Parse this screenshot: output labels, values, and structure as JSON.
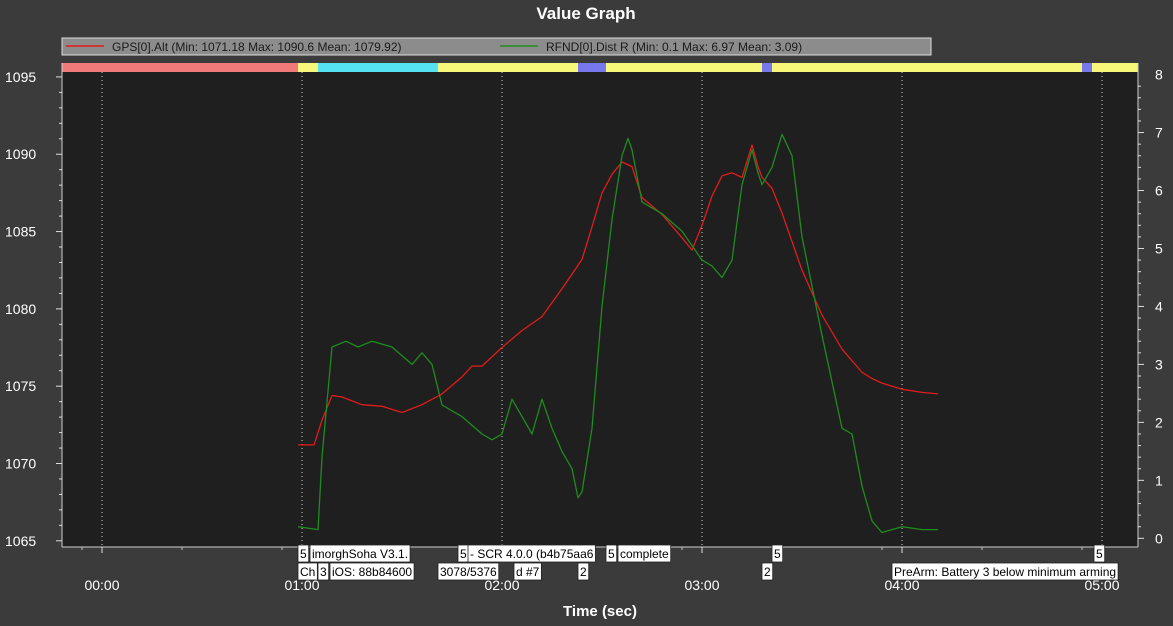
{
  "window": {
    "title": "Value Graph"
  },
  "chart_data": {
    "type": "line",
    "title": "Value Graph",
    "xlabel": "Time (sec)",
    "ylabel": "",
    "x_unit": "minutes",
    "xlim": [
      -0.2,
      5.18
    ],
    "ylim_left": [
      1064.6,
      1095.9
    ],
    "ylim_right": [
      -0.15,
      8.2
    ],
    "x_tick_labels": [
      "00:00",
      "01:00",
      "02:00",
      "03:00",
      "04:00",
      "05:00"
    ],
    "x_tick_values": [
      0,
      1,
      2,
      3,
      4,
      5
    ],
    "y_left_ticks": [
      1065,
      1070,
      1075,
      1080,
      1085,
      1090,
      1095
    ],
    "y_right_ticks": [
      0,
      1,
      2,
      3,
      4,
      5,
      6,
      7,
      8
    ],
    "grid": "vertical dotted",
    "legend": {
      "placement": "top",
      "entries": [
        "GPS[0].Alt  (Min: 1071.18 Max: 1090.6 Mean: 1079.92)",
        "RFND[0].Dist  R (Min: 0.1 Max: 6.97 Mean: 3.09)"
      ]
    },
    "series": [
      {
        "name": "GPS[0].Alt",
        "axis": "left",
        "color": "#e11c1c",
        "x": [
          0.98,
          1.06,
          1.1,
          1.15,
          1.2,
          1.3,
          1.4,
          1.5,
          1.6,
          1.7,
          1.8,
          1.85,
          1.9,
          2.0,
          2.1,
          2.2,
          2.3,
          2.4,
          2.45,
          2.5,
          2.55,
          2.6,
          2.65,
          2.7,
          2.8,
          2.9,
          2.95,
          3.0,
          3.05,
          3.1,
          3.15,
          3.2,
          3.25,
          3.28,
          3.3,
          3.35,
          3.4,
          3.5,
          3.6,
          3.7,
          3.8,
          3.85,
          3.9,
          4.0,
          4.1,
          4.18
        ],
        "y": [
          1071.2,
          1071.2,
          1072.8,
          1074.4,
          1074.3,
          1073.8,
          1073.7,
          1073.3,
          1073.8,
          1074.5,
          1075.6,
          1076.3,
          1076.3,
          1077.5,
          1078.6,
          1079.5,
          1081.3,
          1083.2,
          1085.3,
          1087.5,
          1088.7,
          1089.5,
          1089.2,
          1087.2,
          1086.1,
          1084.6,
          1083.8,
          1085.4,
          1087.3,
          1088.6,
          1088.8,
          1088.5,
          1090.6,
          1089.2,
          1088.5,
          1087.8,
          1086.2,
          1082.5,
          1079.6,
          1077.4,
          1075.9,
          1075.5,
          1075.2,
          1074.8,
          1074.6,
          1074.5
        ]
      },
      {
        "name": "RFND[0].Dist  R",
        "axis": "right",
        "color": "#1e8c1e",
        "x": [
          0.98,
          1.08,
          1.1,
          1.15,
          1.22,
          1.28,
          1.35,
          1.45,
          1.55,
          1.6,
          1.65,
          1.7,
          1.75,
          1.8,
          1.9,
          1.95,
          2.0,
          2.05,
          2.1,
          2.15,
          2.2,
          2.25,
          2.3,
          2.35,
          2.38,
          2.4,
          2.45,
          2.5,
          2.55,
          2.6,
          2.63,
          2.65,
          2.7,
          2.8,
          2.9,
          3.0,
          3.05,
          3.1,
          3.15,
          3.2,
          3.25,
          3.28,
          3.3,
          3.35,
          3.4,
          3.45,
          3.5,
          3.6,
          3.7,
          3.75,
          3.8,
          3.85,
          3.9,
          4.0,
          4.1,
          4.18
        ],
        "y": [
          0.2,
          0.15,
          1.4,
          3.3,
          3.4,
          3.3,
          3.4,
          3.3,
          3.0,
          3.2,
          3.0,
          2.3,
          2.2,
          2.1,
          1.8,
          1.7,
          1.8,
          2.4,
          2.1,
          1.8,
          2.4,
          1.9,
          1.5,
          1.2,
          0.7,
          0.8,
          1.9,
          4.0,
          5.5,
          6.6,
          6.9,
          6.7,
          5.8,
          5.6,
          5.3,
          4.8,
          4.7,
          4.5,
          4.8,
          6.1,
          6.7,
          6.3,
          6.1,
          6.4,
          6.97,
          6.6,
          5.2,
          3.5,
          1.9,
          1.8,
          0.9,
          0.3,
          0.1,
          0.2,
          0.15,
          0.15
        ]
      }
    ],
    "mode_bar": [
      {
        "from": -0.2,
        "to": 0.98,
        "color": "#f07a7a"
      },
      {
        "from": 0.98,
        "to": 1.08,
        "color": "#f7f77a"
      },
      {
        "from": 1.08,
        "to": 1.68,
        "color": "#55e3f2"
      },
      {
        "from": 1.68,
        "to": 2.38,
        "color": "#f7f77a"
      },
      {
        "from": 2.38,
        "to": 2.52,
        "color": "#7777ee"
      },
      {
        "from": 2.52,
        "to": 3.3,
        "color": "#f7f77a"
      },
      {
        "from": 3.3,
        "to": 3.35,
        "color": "#7777ee"
      },
      {
        "from": 3.35,
        "to": 4.9,
        "color": "#f7f77a"
      },
      {
        "from": 4.9,
        "to": 4.95,
        "color": "#7777ee"
      },
      {
        "from": 4.95,
        "to": 5.18,
        "color": "#f7f77a"
      }
    ],
    "annotations": [
      {
        "x": 0.98,
        "row": 1,
        "text": "5"
      },
      {
        "x": 1.04,
        "row": 1,
        "text": "imorghSoha V3.1."
      },
      {
        "x": 1.78,
        "row": 1,
        "text": "5"
      },
      {
        "x": 1.83,
        "row": 1,
        "text": "- SCR 4.0.0 (b4b75aa6"
      },
      {
        "x": 2.52,
        "row": 1,
        "text": "5"
      },
      {
        "x": 2.58,
        "row": 1,
        "text": "complete"
      },
      {
        "x": 3.35,
        "row": 1,
        "text": "5"
      },
      {
        "x": 4.96,
        "row": 1,
        "text": "5"
      },
      {
        "x": 0.98,
        "row": 2,
        "text": "Ch"
      },
      {
        "x": 1.08,
        "row": 2,
        "text": "3"
      },
      {
        "x": 1.14,
        "row": 2,
        "text": "iOS: 88b84600"
      },
      {
        "x": 1.68,
        "row": 2,
        "text": "3078/5376"
      },
      {
        "x": 2.06,
        "row": 2,
        "text": "d #7"
      },
      {
        "x": 2.38,
        "row": 2,
        "text": "2"
      },
      {
        "x": 3.3,
        "row": 2,
        "text": "2"
      },
      {
        "x": 3.95,
        "row": 2,
        "text": "PreArm: Battery 3 below minimum arming"
      }
    ]
  }
}
